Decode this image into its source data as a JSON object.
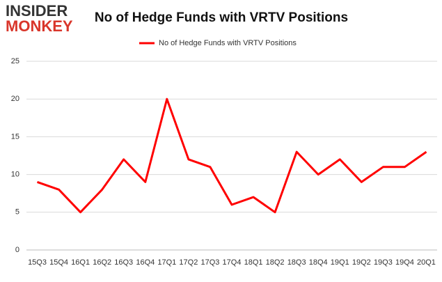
{
  "logo": {
    "line1": "INSIDER",
    "line2": "MONKEY"
  },
  "chart_data": {
    "type": "line",
    "title": "No of Hedge Funds with VRTV Positions",
    "categories": [
      "15Q3",
      "15Q4",
      "16Q1",
      "16Q2",
      "16Q3",
      "16Q4",
      "17Q1",
      "17Q2",
      "17Q3",
      "17Q4",
      "18Q1",
      "18Q2",
      "18Q3",
      "18Q4",
      "19Q1",
      "19Q2",
      "19Q3",
      "19Q4",
      "20Q1"
    ],
    "series": [
      {
        "name": "No of Hedge Funds with VRTV Positions",
        "color": "#ff0000",
        "values": [
          9,
          8,
          5,
          8,
          12,
          9,
          20,
          12,
          11,
          6,
          7,
          5,
          13,
          10,
          12,
          9,
          11,
          11,
          13
        ]
      }
    ],
    "ylim": [
      0,
      25
    ],
    "yticks": [
      0,
      5,
      10,
      15,
      20,
      25
    ],
    "grid": true,
    "legend": "top"
  }
}
